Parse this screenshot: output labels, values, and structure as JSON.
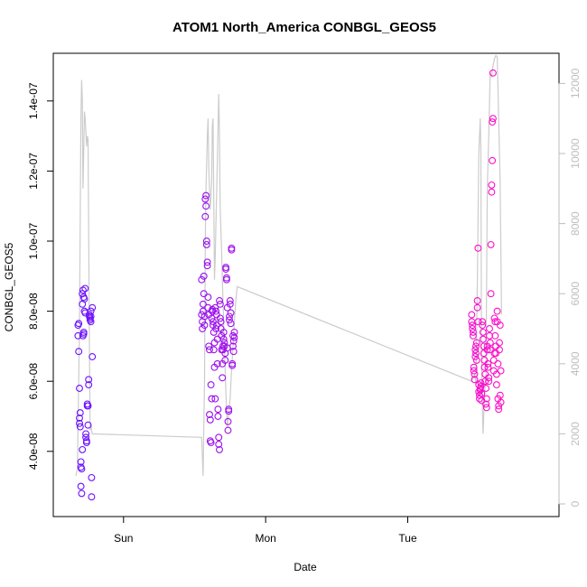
{
  "chart_data": {
    "type": "scatter",
    "title": "ATOM1 North_America CONBGL_GEOS5",
    "xlabel": "Date",
    "ylabel": "CONBGL_GEOS5",
    "x_ticks": [
      "Sun",
      "Mon",
      "Tue"
    ],
    "ylim": [
      2.5e-08,
      1.5e-07
    ],
    "y_ticks": [
      "4.0e-08",
      "6.0e-08",
      "8.0e-08",
      "1.0e-07",
      "1.2e-07",
      "1.4e-07"
    ],
    "y_tick_values": [
      4e-08,
      6e-08,
      8e-08,
      1e-07,
      1.2e-07,
      1.4e-07
    ],
    "y2lim": [
      0,
      12500
    ],
    "y2_ticks": [
      "0",
      "2000",
      "4000",
      "6000",
      "8000",
      "10000",
      "12000"
    ],
    "y2_tick_values": [
      0,
      2000,
      4000,
      6000,
      8000,
      10000,
      12000
    ],
    "x_tick_days": [
      1,
      2,
      3
    ],
    "xlim_days": [
      0.62,
      3.95
    ],
    "grid": false,
    "colors": {
      "line": "#cccccc",
      "point_start": "#6a11ff",
      "point_end": "#ff10c8",
      "axis": "#000000",
      "right_axis": "#bdbdbd"
    },
    "series": [
      {
        "kind": "points",
        "x_days": [
          0.68,
          0.68,
          0.685,
          0.685,
          0.69,
          0.69,
          0.69,
          0.695,
          0.695,
          0.7,
          0.7,
          0.7,
          0.705,
          0.705,
          0.71,
          0.71,
          0.71,
          0.715,
          0.715,
          0.72,
          0.72,
          0.72,
          0.725,
          0.725,
          0.73,
          0.73,
          0.735,
          0.735,
          0.74,
          0.74,
          0.745,
          0.745,
          0.75,
          0.75,
          0.755,
          0.755,
          0.76,
          0.76,
          0.765,
          0.765,
          0.77,
          0.77,
          0.77,
          0.775,
          0.775,
          0.78,
          0.78
        ],
        "y": [
          7.3e-08,
          7.6e-08,
          7.65e-08,
          6.85e-08,
          5.8e-08,
          4.95e-08,
          4.8e-08,
          5.1e-08,
          4.7e-08,
          3.7e-08,
          3.55e-08,
          3e-08,
          2.8e-08,
          3.5e-08,
          4.05e-08,
          8.2e-08,
          8.5e-08,
          8.6e-08,
          7.3e-08,
          7.4e-08,
          7.35e-08,
          8.4e-08,
          8.35e-08,
          8e-08,
          7.95e-08,
          8.65e-08,
          4.5e-08,
          4.4e-08,
          4.3e-08,
          4.25e-08,
          5.3e-08,
          5.35e-08,
          5.3e-08,
          4.75e-08,
          6.05e-08,
          5.9e-08,
          7.85e-08,
          7.9e-08,
          7.75e-08,
          7.8e-08,
          7.7e-08,
          7.85e-08,
          8e-08,
          3.25e-08,
          2.7e-08,
          6.7e-08,
          8.1e-08
        ]
      },
      {
        "kind": "points",
        "x_days": [
          1.55,
          1.55,
          1.555,
          1.555,
          1.56,
          1.56,
          1.565,
          1.565,
          1.57,
          1.57,
          1.575,
          1.575,
          1.58,
          1.58,
          1.585,
          1.585,
          1.59,
          1.59,
          1.595,
          1.595,
          1.6,
          1.6,
          1.605,
          1.605,
          1.61,
          1.61,
          1.615,
          1.615,
          1.62,
          1.62,
          1.625,
          1.625,
          1.63,
          1.63,
          1.635,
          1.635,
          1.64,
          1.64,
          1.645,
          1.645,
          1.65,
          1.65,
          1.655,
          1.655,
          1.66,
          1.66,
          1.665,
          1.665,
          1.67,
          1.67,
          1.675,
          1.675,
          1.68,
          1.68,
          1.685,
          1.685,
          1.69,
          1.69,
          1.695,
          1.695,
          1.7,
          1.7,
          1.705,
          1.705,
          1.71,
          1.71,
          1.715,
          1.715,
          1.72,
          1.72,
          1.725,
          1.725,
          1.73,
          1.73,
          1.735,
          1.735,
          1.74,
          1.74,
          1.745,
          1.745,
          1.75,
          1.75,
          1.755,
          1.755,
          1.76,
          1.76,
          1.765,
          1.765,
          1.77,
          1.77,
          1.775,
          1.775,
          1.78,
          1.78
        ],
        "y": [
          7.9e-08,
          8.9e-08,
          7.7e-08,
          7.5e-08,
          8.2e-08,
          8e-08,
          9e-08,
          8.5e-08,
          7.85e-08,
          7.6e-08,
          1.07e-07,
          1.12e-07,
          1.1e-07,
          1.13e-07,
          1e-07,
          9.9e-08,
          9.3e-08,
          9.4e-08,
          8.4e-08,
          8.1e-08,
          7.9e-08,
          7e-08,
          6.9e-08,
          5.05e-08,
          4.9e-08,
          4.3e-08,
          4.25e-08,
          5.9e-08,
          5.5e-08,
          7.8e-08,
          8e-08,
          8.05e-08,
          7.7e-08,
          7.6e-08,
          7.4e-08,
          6.9e-08,
          7.1e-08,
          6.4e-08,
          5.5e-08,
          8.1e-08,
          8e-08,
          7.5e-08,
          7.6e-08,
          7.9e-08,
          7.2e-08,
          6.5e-08,
          5.2e-08,
          5e-08,
          4.4e-08,
          4.2e-08,
          4.05e-08,
          8.3e-08,
          8.2e-08,
          7.8e-08,
          7.7e-08,
          7.5e-08,
          7.3e-08,
          6.9e-08,
          6.5e-08,
          6.1e-08,
          6.9e-08,
          7e-08,
          7.2e-08,
          7.4e-08,
          7.1e-08,
          7e-08,
          6.8e-08,
          6.6e-08,
          9.2e-08,
          9.25e-08,
          8.9e-08,
          8.95e-08,
          8.1e-08,
          6.95e-08,
          4.85e-08,
          4.6e-08,
          5.2e-08,
          5.15e-08,
          7.85e-08,
          7.75e-08,
          8.2e-08,
          8.3e-08,
          7.95e-08,
          7.65e-08,
          9.8e-08,
          9.75e-08,
          6.5e-08,
          6.45e-08,
          7.3e-08,
          7e-08,
          6.85e-08,
          7.15e-08,
          7.25e-08,
          7.4e-08
        ]
      },
      {
        "kind": "points",
        "x_days": [
          3.45,
          3.45,
          3.455,
          3.455,
          3.46,
          3.46,
          3.465,
          3.465,
          3.47,
          3.47,
          3.475,
          3.475,
          3.48,
          3.48,
          3.485,
          3.485,
          3.49,
          3.49,
          3.495,
          3.495,
          3.5,
          3.5,
          3.505,
          3.505,
          3.51,
          3.51,
          3.515,
          3.515,
          3.52,
          3.52,
          3.525,
          3.525,
          3.53,
          3.53,
          3.535,
          3.535,
          3.54,
          3.54,
          3.545,
          3.545,
          3.55,
          3.55,
          3.555,
          3.555,
          3.56,
          3.56,
          3.565,
          3.565,
          3.57,
          3.57,
          3.575,
          3.575,
          3.58,
          3.58,
          3.585,
          3.585,
          3.59,
          3.59,
          3.595,
          3.595,
          3.6,
          3.6,
          3.605,
          3.605,
          3.61,
          3.61,
          3.615,
          3.615,
          3.62,
          3.62,
          3.625,
          3.625,
          3.63,
          3.63,
          3.635,
          3.635,
          3.64,
          3.64,
          3.645,
          3.645,
          3.65,
          3.65,
          3.655,
          3.655
        ],
        "y": [
          7.9e-08,
          7.7e-08,
          7.5e-08,
          7.6e-08,
          7.4e-08,
          7.3e-08,
          6.4e-08,
          6.3e-08,
          6.2e-08,
          6.05e-08,
          6.9e-08,
          6.7e-08,
          6.8e-08,
          7e-08,
          6.6e-08,
          7.1e-08,
          8.3e-08,
          8.1e-08,
          7.7e-08,
          9.8e-08,
          5.9e-08,
          5.7e-08,
          5.5e-08,
          5.6e-08,
          5.8e-08,
          5.75e-08,
          5.95e-08,
          5.85e-08,
          5.65e-08,
          5.45e-08,
          7.7e-08,
          7.6e-08,
          7.4e-08,
          7.2e-08,
          7e-08,
          6.8e-08,
          6.6e-08,
          6.4e-08,
          6.2e-08,
          6e-08,
          5.8e-08,
          5.35e-08,
          5.25e-08,
          5.5e-08,
          7e-08,
          6.9e-08,
          6.5e-08,
          6.4e-08,
          6.1e-08,
          6e-08,
          7.3e-08,
          7.5e-08,
          7.1e-08,
          6.9e-08,
          8.5e-08,
          9.9e-08,
          1.14e-07,
          1.16e-07,
          1.23e-07,
          1.34e-07,
          1.35e-07,
          1.48e-07,
          6.6e-08,
          6.3e-08,
          6.8e-08,
          7.8e-08,
          7.7e-08,
          7.3e-08,
          7e-08,
          6.8e-08,
          6.2e-08,
          5.9e-08,
          7.7e-08,
          8e-08,
          6.5e-08,
          5.5e-08,
          5.3e-08,
          5.2e-08,
          6.9e-08,
          7.1e-08,
          7.6e-08,
          5.6e-08,
          5.4e-08,
          6.3e-08
        ]
      },
      {
        "kind": "line",
        "axis": "right",
        "x_days": [
          0.665,
          0.675,
          0.69,
          0.7,
          0.705,
          0.71,
          0.715,
          0.72,
          0.725,
          0.73,
          0.74,
          0.745,
          0.75,
          0.76,
          0.765,
          0.77,
          0.775,
          0.78,
          1.55,
          1.56,
          1.57,
          1.575,
          1.58,
          1.59,
          1.595,
          1.6,
          1.61,
          1.62,
          1.625,
          1.63,
          1.64,
          1.645,
          1.65,
          1.66,
          1.67,
          1.675,
          1.68,
          1.69,
          1.7,
          1.71,
          1.72,
          1.73,
          1.74,
          1.75,
          1.76,
          1.77,
          1.78,
          1.79,
          1.8,
          3.45,
          3.46,
          3.47,
          3.48,
          3.49,
          3.5,
          3.51,
          3.515,
          3.52,
          3.53,
          3.54,
          3.55,
          3.56,
          3.57,
          3.58,
          3.59,
          3.6,
          3.61,
          3.62,
          3.63,
          3.64,
          3.65,
          3.66
        ],
        "y": [
          800,
          1000,
          5000,
          11000,
          12100,
          11500,
          9000,
          10000,
          11200,
          11000,
          10200,
          10500,
          10400,
          4600,
          2100,
          2300,
          2100,
          2000,
          1900,
          800,
          3600,
          7500,
          9000,
          10500,
          11000,
          9600,
          8400,
          9200,
          10800,
          11000,
          6400,
          7000,
          8000,
          9800,
          11700,
          10600,
          8500,
          7200,
          5800,
          4500,
          3200,
          2200,
          2600,
          3000,
          3800,
          4500,
          5200,
          5800,
          6200,
          3500,
          3600,
          3700,
          3400,
          6400,
          10000,
          11000,
          10100,
          3700,
          2000,
          3100,
          3700,
          9000,
          10500,
          12300,
          12200,
          12500,
          12700,
          12800,
          12750,
          11000,
          9200,
          5400
        ]
      }
    ]
  }
}
